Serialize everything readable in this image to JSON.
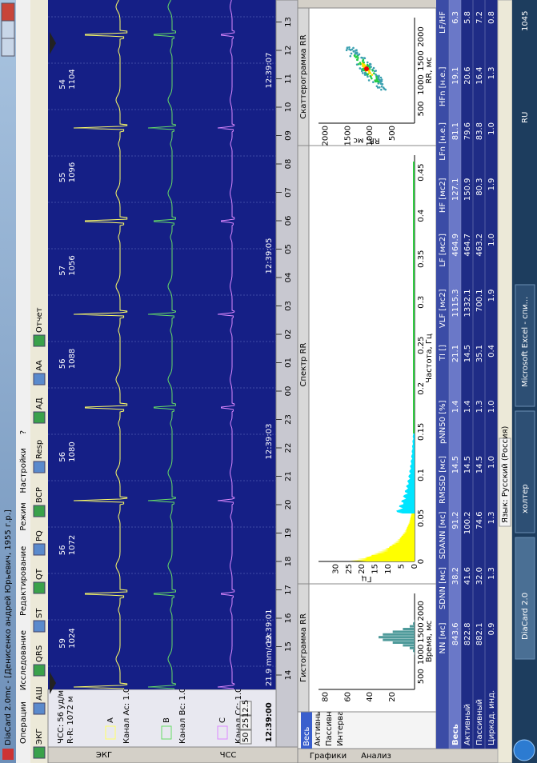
{
  "window": {
    "title": "DiaCard 2.0mc - [Денисенко андрей Юрьевич, 1955 г.р.]"
  },
  "menu": [
    "Операции",
    "Исследование",
    "Редактирование",
    "Режим",
    "Настройки",
    "?"
  ],
  "toolbar": [
    "ЭКГ",
    "АШ",
    "QRS",
    "ST",
    "QT",
    "PQ",
    "ВСР",
    "Resp",
    "АД",
    "АА",
    "Отчет"
  ],
  "side_tabs": [
    "ЭКГ",
    "ЧСС"
  ],
  "channel_panel": {
    "hr": "ЧСС:  56 уд/м",
    "rr": "R-R:  1072 м",
    "channels": [
      "Канал Ас: 1.0",
      "Канал Вс: 1.0",
      "Канал Сс: 1.0"
    ],
    "channel_letters": [
      "A",
      "B",
      "C"
    ],
    "speeds": [
      "50",
      "25",
      "12.5"
    ],
    "time": "12:39:00"
  },
  "ecg": {
    "beats": [
      {
        "hr": "59",
        "rr": "1024"
      },
      {
        "hr": "56",
        "rr": "1072"
      },
      {
        "hr": "56",
        "rr": "1080"
      },
      {
        "hr": "56",
        "rr": "1088"
      },
      {
        "hr": "57",
        "rr": "1056"
      },
      {
        "hr": "55",
        "rr": "1096"
      },
      {
        "hr": "54",
        "rr": "1104"
      }
    ],
    "times": [
      "12:39:01",
      "12:39:03",
      "12:39:05",
      "12:39:07"
    ],
    "speed": "21.9 mm/сек"
  },
  "timeline": [
    "14",
    "15",
    "16",
    "17",
    "18",
    "19",
    "20",
    "21",
    "22",
    "23",
    "00",
    "01",
    "02",
    "03",
    "04",
    "05",
    "06",
    "07",
    "08",
    "09",
    "10",
    "11",
    "12",
    "13"
  ],
  "view_tabs": [
    "Графики",
    "Анализ"
  ],
  "period_tabs": [
    "Весь",
    "Активный",
    "Пассивный",
    "Интервал"
  ],
  "histogram": {
    "title": "Гистограмма RR",
    "x_label": "Время, мс",
    "xticks": [
      "500",
      "1000",
      "1500",
      "2000"
    ],
    "yticks": [
      "20",
      "40",
      "60",
      "80"
    ]
  },
  "spectrum": {
    "title": "Спектр RR",
    "x_label": "Частота, Гц",
    "y_label": "Гц",
    "xticks": [
      "0",
      "0.05",
      "0.1",
      "0.15",
      "0.2",
      "0.25",
      "0.3",
      "0.35",
      "0.4",
      "0.45"
    ],
    "yticks": [
      "0",
      "5",
      "10",
      "15",
      "20",
      "25",
      "30"
    ]
  },
  "scatter": {
    "title": "Скаттерограмма RR",
    "x_label": "RR, мс",
    "y_label": "RR, мс",
    "xticks": [
      "500",
      "1000",
      "1500",
      "2000"
    ],
    "yticks": [
      "500",
      "1000",
      "1500",
      "2000"
    ]
  },
  "table": {
    "columns": [
      "NN [мс]",
      "SDNN [мс]",
      "SDANN [мс]",
      "RMSSD [мс]",
      "pNN50 [%]",
      "TI []",
      "VLF [мс2]",
      "LF [мс2]",
      "HF [мс2]",
      "LFn [н.е.]",
      "HFn [н.е.]",
      "LF/HF"
    ],
    "rows": [
      {
        "label": "Весь",
        "values": [
          "843.6",
          "38.2",
          "91.2",
          "14.5",
          "1.4",
          "21.1",
          "1115.3",
          "464.9",
          "127.1",
          "81.1",
          "19.1",
          "6.3"
        ]
      },
      {
        "label": "Активный",
        "values": [
          "822.8",
          "41.6",
          "100.2",
          "14.5",
          "1.4",
          "14.5",
          "1332.1",
          "464.7",
          "150.9",
          "79.6",
          "20.6",
          "5.8"
        ]
      },
      {
        "label": "Пассивный",
        "values": [
          "882.1",
          "32.0",
          "74.6",
          "14.5",
          "1.3",
          "35.1",
          "700.1",
          "463.2",
          "80.3",
          "83.8",
          "16.4",
          "7.2"
        ]
      },
      {
        "label": "Циркад. инд.",
        "values": [
          "0.9",
          "1.3",
          "1.3",
          "1.0",
          "1.0",
          "0.4",
          "1.9",
          "1.0",
          "1.9",
          "1.0",
          "1.3",
          "0.8"
        ]
      }
    ]
  },
  "status": "Язык: Русский (Россия)",
  "taskbar": {
    "items": [
      "DiaCard 2.0",
      "холтер",
      "Microsoft Excel - спи..."
    ],
    "lang": "RU",
    "clock": "1045"
  }
}
